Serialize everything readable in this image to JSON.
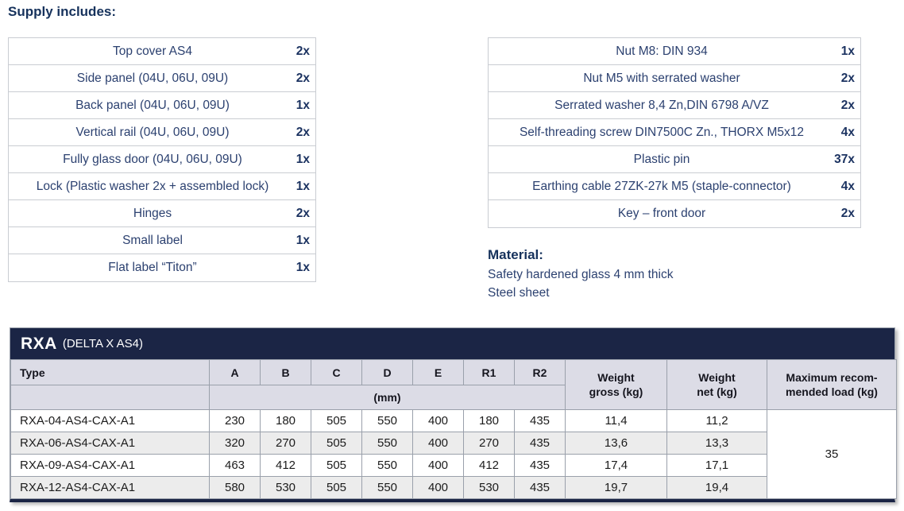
{
  "supply": {
    "heading": "Supply includes:"
  },
  "supply_left": {
    "items": [
      {
        "label": "Top cover AS4",
        "qty": "2x"
      },
      {
        "label": "Side panel (04U, 06U, 09U)",
        "qty": "2x"
      },
      {
        "label": "Back panel (04U, 06U, 09U)",
        "qty": "1x"
      },
      {
        "label": "Vertical rail (04U, 06U, 09U)",
        "qty": "2x"
      },
      {
        "label": "Fully glass door (04U, 06U, 09U)",
        "qty": "1x"
      },
      {
        "label": "Lock (Plastic washer 2x + assembled lock)",
        "qty": "1x"
      },
      {
        "label": "Hinges",
        "qty": "2x"
      },
      {
        "label": "Small label",
        "qty": "1x"
      },
      {
        "label": "Flat label “Titon”",
        "qty": "1x"
      }
    ]
  },
  "supply_right": {
    "items": [
      {
        "label": "Nut M8: DIN 934",
        "qty": "1x"
      },
      {
        "label": "Nut M5 with serrated washer",
        "qty": "2x"
      },
      {
        "label": "Serrated washer 8,4 Zn,DIN 6798 A/VZ",
        "qty": "2x"
      },
      {
        "label": "Self-threading screw DIN7500C Zn., THORX M5x12",
        "qty": "4x"
      },
      {
        "label": "Plastic pin",
        "qty": "37x"
      },
      {
        "label": "Earthing cable 27ZK-27k M5 (staple-connector)",
        "qty": "4x"
      },
      {
        "label": "Key – front door",
        "qty": "2x"
      }
    ]
  },
  "material": {
    "heading": "Material:",
    "lines": [
      "Safety hardened glass 4 mm thick",
      "Steel sheet"
    ]
  },
  "spec_table": {
    "title": "RXA",
    "subtitle": "(DELTA X AS4)",
    "col_type": "Type",
    "dim_cols": [
      "A",
      "B",
      "C",
      "D",
      "E",
      "R1",
      "R2"
    ],
    "unit_label": "(mm)",
    "col_weight_gross": "Weight\ngross (kg)",
    "col_weight_net": "Weight\nnet (kg)",
    "col_max_load": "Maximum recom-\nmended load (kg)",
    "rows": [
      {
        "type": "RXA-04-AS4-CAX-A1",
        "dims": [
          "230",
          "180",
          "505",
          "550",
          "400",
          "180",
          "435"
        ],
        "gross": "11,4",
        "net": "11,2"
      },
      {
        "type": "RXA-06-AS4-CAX-A1",
        "dims": [
          "320",
          "270",
          "505",
          "550",
          "400",
          "270",
          "435"
        ],
        "gross": "13,6",
        "net": "13,3"
      },
      {
        "type": "RXA-09-AS4-CAX-A1",
        "dims": [
          "463",
          "412",
          "505",
          "550",
          "400",
          "412",
          "435"
        ],
        "gross": "17,4",
        "net": "17,1"
      },
      {
        "type": "RXA-12-AS4-CAX-A1",
        "dims": [
          "580",
          "530",
          "505",
          "550",
          "400",
          "530",
          "435"
        ],
        "gross": "19,7",
        "net": "19,4"
      }
    ],
    "max_load": "35"
  },
  "colors": {
    "navy_bar": "#1b2545",
    "heading_navy": "#16325c",
    "list_text_navy": "#2c4170",
    "table_header_bg": "#dcdce6",
    "row_stripe": "#ececec",
    "cell_border": "#9aa0ab"
  }
}
